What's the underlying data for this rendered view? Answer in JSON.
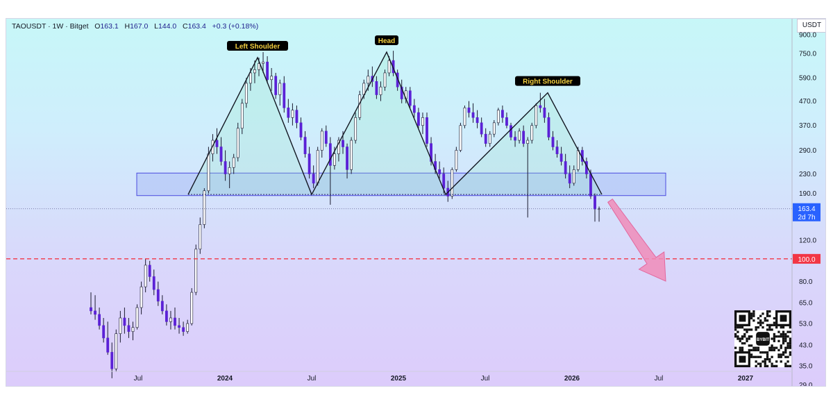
{
  "header": {
    "symbol": "TAOUSDT",
    "timeframe": "1W",
    "exchange": "Bitget",
    "open_label": "O",
    "open": "163.1",
    "high_label": "H",
    "high": "167.0",
    "low_label": "L",
    "low": "144.0",
    "close_label": "C",
    "close": "163.4",
    "change": "+0.3 (+0.18%)"
  },
  "currency_label": "USDT",
  "price_tag": {
    "price": "163.4",
    "countdown": "2d 7h",
    "color": "#2962ff"
  },
  "level_tag": {
    "price": "100.0",
    "color": "#f23645"
  },
  "qr_label": "BYBIT",
  "chart_data": {
    "type": "candlestick",
    "title": "",
    "y_scale": "log",
    "y_ticks": [
      "900.0",
      "750.0",
      "590.0",
      "470.0",
      "370.0",
      "290.0",
      "230.0",
      "190.0",
      "120.0",
      "80.0",
      "65.0",
      "53.0",
      "43.0",
      "35.0",
      "29.0"
    ],
    "x_ticks": [
      {
        "label": "Jul",
        "bold": false,
        "date": "2023-07"
      },
      {
        "label": "2024",
        "bold": true,
        "date": "2024-01"
      },
      {
        "label": "Jul",
        "bold": false,
        "date": "2024-07"
      },
      {
        "label": "2025",
        "bold": true,
        "date": "2025-01"
      },
      {
        "label": "Jul",
        "bold": false,
        "date": "2025-07"
      },
      {
        "label": "2026",
        "bold": true,
        "date": "2026-01"
      },
      {
        "label": "Jul",
        "bold": false,
        "date": "2026-07"
      },
      {
        "label": "2027",
        "bold": true,
        "date": "2027-01"
      }
    ],
    "candle_colors": {
      "up": "#ffffff",
      "down": "#5b21d6",
      "wick": "#1a1a2e"
    },
    "candles": [
      {
        "o": 62,
        "h": 72,
        "l": 58,
        "c": 60
      },
      {
        "o": 60,
        "h": 70,
        "l": 55,
        "c": 58
      },
      {
        "o": 58,
        "h": 62,
        "l": 50,
        "c": 52
      },
      {
        "o": 52,
        "h": 56,
        "l": 44,
        "c": 46
      },
      {
        "o": 46,
        "h": 54,
        "l": 39,
        "c": 40
      },
      {
        "o": 40,
        "h": 44,
        "l": 31,
        "c": 34
      },
      {
        "o": 34,
        "h": 50,
        "l": 33,
        "c": 48
      },
      {
        "o": 48,
        "h": 60,
        "l": 44,
        "c": 56
      },
      {
        "o": 56,
        "h": 62,
        "l": 48,
        "c": 52
      },
      {
        "o": 52,
        "h": 56,
        "l": 46,
        "c": 49
      },
      {
        "o": 49,
        "h": 54,
        "l": 45,
        "c": 51
      },
      {
        "o": 51,
        "h": 64,
        "l": 50,
        "c": 62
      },
      {
        "o": 62,
        "h": 80,
        "l": 58,
        "c": 76
      },
      {
        "o": 76,
        "h": 100,
        "l": 72,
        "c": 94
      },
      {
        "o": 94,
        "h": 98,
        "l": 80,
        "c": 84
      },
      {
        "o": 84,
        "h": 90,
        "l": 70,
        "c": 74
      },
      {
        "o": 74,
        "h": 80,
        "l": 63,
        "c": 66
      },
      {
        "o": 66,
        "h": 70,
        "l": 58,
        "c": 60
      },
      {
        "o": 60,
        "h": 64,
        "l": 52,
        "c": 54
      },
      {
        "o": 54,
        "h": 60,
        "l": 50,
        "c": 56
      },
      {
        "o": 56,
        "h": 62,
        "l": 50,
        "c": 52
      },
      {
        "o": 52,
        "h": 56,
        "l": 48,
        "c": 51
      },
      {
        "o": 51,
        "h": 54,
        "l": 47,
        "c": 49
      },
      {
        "o": 49,
        "h": 55,
        "l": 48,
        "c": 53
      },
      {
        "o": 53,
        "h": 75,
        "l": 52,
        "c": 72
      },
      {
        "o": 72,
        "h": 115,
        "l": 70,
        "c": 110
      },
      {
        "o": 110,
        "h": 150,
        "l": 105,
        "c": 140
      },
      {
        "o": 140,
        "h": 200,
        "l": 135,
        "c": 195
      },
      {
        "o": 195,
        "h": 300,
        "l": 190,
        "c": 280
      },
      {
        "o": 280,
        "h": 340,
        "l": 260,
        "c": 320
      },
      {
        "o": 320,
        "h": 360,
        "l": 280,
        "c": 300
      },
      {
        "o": 300,
        "h": 330,
        "l": 250,
        "c": 260
      },
      {
        "o": 260,
        "h": 290,
        "l": 215,
        "c": 230
      },
      {
        "o": 230,
        "h": 260,
        "l": 200,
        "c": 245
      },
      {
        "o": 245,
        "h": 280,
        "l": 230,
        "c": 270
      },
      {
        "o": 270,
        "h": 380,
        "l": 260,
        "c": 360
      },
      {
        "o": 360,
        "h": 480,
        "l": 340,
        "c": 460
      },
      {
        "o": 460,
        "h": 590,
        "l": 440,
        "c": 560
      },
      {
        "o": 560,
        "h": 650,
        "l": 520,
        "c": 620
      },
      {
        "o": 620,
        "h": 700,
        "l": 560,
        "c": 640
      },
      {
        "o": 640,
        "h": 720,
        "l": 600,
        "c": 680
      },
      {
        "o": 680,
        "h": 760,
        "l": 620,
        "c": 690
      },
      {
        "o": 690,
        "h": 730,
        "l": 560,
        "c": 580
      },
      {
        "o": 580,
        "h": 650,
        "l": 520,
        "c": 600
      },
      {
        "o": 600,
        "h": 620,
        "l": 480,
        "c": 500
      },
      {
        "o": 500,
        "h": 580,
        "l": 450,
        "c": 560
      },
      {
        "o": 560,
        "h": 600,
        "l": 420,
        "c": 440
      },
      {
        "o": 440,
        "h": 480,
        "l": 380,
        "c": 400
      },
      {
        "o": 400,
        "h": 460,
        "l": 370,
        "c": 430
      },
      {
        "o": 430,
        "h": 450,
        "l": 360,
        "c": 380
      },
      {
        "o": 380,
        "h": 400,
        "l": 320,
        "c": 330
      },
      {
        "o": 330,
        "h": 350,
        "l": 270,
        "c": 280
      },
      {
        "o": 280,
        "h": 300,
        "l": 220,
        "c": 230
      },
      {
        "o": 230,
        "h": 250,
        "l": 200,
        "c": 210
      },
      {
        "o": 210,
        "h": 300,
        "l": 205,
        "c": 290
      },
      {
        "o": 290,
        "h": 360,
        "l": 270,
        "c": 350
      },
      {
        "o": 350,
        "h": 370,
        "l": 300,
        "c": 310
      },
      {
        "o": 310,
        "h": 330,
        "l": 170,
        "c": 250
      },
      {
        "o": 250,
        "h": 300,
        "l": 240,
        "c": 280
      },
      {
        "o": 280,
        "h": 330,
        "l": 260,
        "c": 320
      },
      {
        "o": 320,
        "h": 350,
        "l": 280,
        "c": 300
      },
      {
        "o": 300,
        "h": 310,
        "l": 220,
        "c": 240
      },
      {
        "o": 240,
        "h": 330,
        "l": 230,
        "c": 320
      },
      {
        "o": 320,
        "h": 420,
        "l": 310,
        "c": 400
      },
      {
        "o": 400,
        "h": 520,
        "l": 390,
        "c": 500
      },
      {
        "o": 500,
        "h": 580,
        "l": 480,
        "c": 560
      },
      {
        "o": 560,
        "h": 640,
        "l": 520,
        "c": 600
      },
      {
        "o": 600,
        "h": 660,
        "l": 540,
        "c": 570
      },
      {
        "o": 570,
        "h": 600,
        "l": 480,
        "c": 500
      },
      {
        "o": 500,
        "h": 570,
        "l": 470,
        "c": 540
      },
      {
        "o": 540,
        "h": 640,
        "l": 520,
        "c": 620
      },
      {
        "o": 620,
        "h": 730,
        "l": 600,
        "c": 700
      },
      {
        "o": 700,
        "h": 770,
        "l": 600,
        "c": 620
      },
      {
        "o": 620,
        "h": 640,
        "l": 520,
        "c": 540
      },
      {
        "o": 540,
        "h": 580,
        "l": 460,
        "c": 480
      },
      {
        "o": 480,
        "h": 540,
        "l": 460,
        "c": 520
      },
      {
        "o": 520,
        "h": 540,
        "l": 440,
        "c": 450
      },
      {
        "o": 450,
        "h": 480,
        "l": 400,
        "c": 420
      },
      {
        "o": 420,
        "h": 440,
        "l": 360,
        "c": 370
      },
      {
        "o": 370,
        "h": 420,
        "l": 340,
        "c": 400
      },
      {
        "o": 400,
        "h": 420,
        "l": 300,
        "c": 310
      },
      {
        "o": 310,
        "h": 330,
        "l": 250,
        "c": 260
      },
      {
        "o": 260,
        "h": 280,
        "l": 230,
        "c": 240
      },
      {
        "o": 240,
        "h": 260,
        "l": 220,
        "c": 230
      },
      {
        "o": 230,
        "h": 245,
        "l": 190,
        "c": 200
      },
      {
        "o": 200,
        "h": 215,
        "l": 175,
        "c": 185
      },
      {
        "o": 185,
        "h": 245,
        "l": 180,
        "c": 240
      },
      {
        "o": 240,
        "h": 300,
        "l": 235,
        "c": 290
      },
      {
        "o": 290,
        "h": 380,
        "l": 285,
        "c": 370
      },
      {
        "o": 370,
        "h": 450,
        "l": 360,
        "c": 440
      },
      {
        "o": 440,
        "h": 470,
        "l": 400,
        "c": 420
      },
      {
        "o": 420,
        "h": 460,
        "l": 380,
        "c": 400
      },
      {
        "o": 400,
        "h": 430,
        "l": 360,
        "c": 380
      },
      {
        "o": 380,
        "h": 400,
        "l": 330,
        "c": 340
      },
      {
        "o": 340,
        "h": 360,
        "l": 300,
        "c": 310
      },
      {
        "o": 310,
        "h": 350,
        "l": 300,
        "c": 340
      },
      {
        "o": 340,
        "h": 390,
        "l": 330,
        "c": 380
      },
      {
        "o": 380,
        "h": 440,
        "l": 370,
        "c": 430
      },
      {
        "o": 430,
        "h": 450,
        "l": 380,
        "c": 400
      },
      {
        "o": 400,
        "h": 420,
        "l": 360,
        "c": 370
      },
      {
        "o": 370,
        "h": 380,
        "l": 320,
        "c": 330
      },
      {
        "o": 330,
        "h": 350,
        "l": 300,
        "c": 320
      },
      {
        "o": 320,
        "h": 360,
        "l": 310,
        "c": 350
      },
      {
        "o": 350,
        "h": 370,
        "l": 300,
        "c": 310
      },
      {
        "o": 310,
        "h": 330,
        "l": 150,
        "c": 320
      },
      {
        "o": 320,
        "h": 380,
        "l": 310,
        "c": 370
      },
      {
        "o": 370,
        "h": 460,
        "l": 360,
        "c": 450
      },
      {
        "o": 450,
        "h": 510,
        "l": 420,
        "c": 440
      },
      {
        "o": 440,
        "h": 480,
        "l": 380,
        "c": 400
      },
      {
        "o": 400,
        "h": 420,
        "l": 320,
        "c": 330
      },
      {
        "o": 330,
        "h": 350,
        "l": 290,
        "c": 300
      },
      {
        "o": 300,
        "h": 320,
        "l": 270,
        "c": 280
      },
      {
        "o": 280,
        "h": 300,
        "l": 250,
        "c": 260
      },
      {
        "o": 260,
        "h": 280,
        "l": 220,
        "c": 230
      },
      {
        "o": 230,
        "h": 250,
        "l": 200,
        "c": 210
      },
      {
        "o": 210,
        "h": 250,
        "l": 205,
        "c": 240
      },
      {
        "o": 240,
        "h": 300,
        "l": 235,
        "c": 290
      },
      {
        "o": 290,
        "h": 300,
        "l": 250,
        "c": 260
      },
      {
        "o": 260,
        "h": 270,
        "l": 220,
        "c": 230
      },
      {
        "o": 230,
        "h": 240,
        "l": 180,
        "c": 185
      },
      {
        "o": 185,
        "h": 190,
        "l": 144,
        "c": 163
      },
      {
        "o": 163.1,
        "h": 167,
        "l": 144,
        "c": 163.4
      }
    ],
    "support_zone": {
      "low": 186,
      "high": 232,
      "start": "2023-12",
      "end": "2026-07"
    },
    "neckline": 188,
    "current_price": 163.4,
    "target_level": 100.0,
    "pattern": {
      "name": "Head and Shoulders",
      "labels": [
        {
          "text": "Left Shoulder",
          "price": 720
        },
        {
          "text": "Head",
          "price": 760
        },
        {
          "text": "Right Shoulder",
          "price": 510
        }
      ],
      "points": [
        {
          "date": "2023-11",
          "price": 188
        },
        {
          "date": "2024-03",
          "price": 720
        },
        {
          "date": "2024-07",
          "price": 188
        },
        {
          "date": "2024-12",
          "price": 760
        },
        {
          "date": "2025-04",
          "price": 188
        },
        {
          "date": "2025-11",
          "price": 510
        },
        {
          "date": "2026-02",
          "price": 188
        }
      ]
    },
    "projection_arrow": {
      "from": {
        "date": "2026-02",
        "price": 175
      },
      "to": {
        "date": "2026-07",
        "price": 72
      },
      "color": "#f08cb8"
    }
  }
}
